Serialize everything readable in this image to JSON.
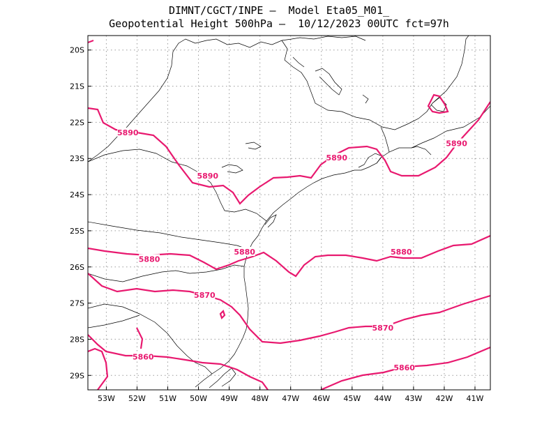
{
  "header": {
    "line1": "DIMNT/CGCT/INPE —  Model Eta05_M01_",
    "line2": "Geopotential Height 500hPa —  10/12/2023 00UTC fct=97h"
  },
  "map": {
    "lon_range": [
      -53.6,
      -40.5
    ],
    "lat_range": [
      -29.4,
      -19.6
    ],
    "lon_ticks": [
      "53W",
      "52W",
      "51W",
      "50W",
      "49W",
      "48W",
      "47W",
      "46W",
      "45W",
      "44W",
      "43W",
      "42W",
      "41W"
    ],
    "lat_ticks": [
      "20S",
      "21S",
      "22S",
      "23S",
      "24S",
      "25S",
      "26S",
      "27S",
      "28S",
      "29S"
    ],
    "contour_color": "#e8196f",
    "coast_color": "#000000",
    "grid_color": "#9a9a9a",
    "contour_labels": [
      {
        "text": "5890",
        "lon": -52.3,
        "lat": -22.3
      },
      {
        "text": "5890",
        "lon": -49.7,
        "lat": -23.5
      },
      {
        "text": "5890",
        "lon": -45.5,
        "lat": -23.0
      },
      {
        "text": "5890",
        "lon": -41.6,
        "lat": -22.6
      },
      {
        "text": "5880",
        "lon": -51.6,
        "lat": -25.8
      },
      {
        "text": "5880",
        "lon": -48.5,
        "lat": -25.6
      },
      {
        "text": "5880",
        "lon": -43.4,
        "lat": -25.6
      },
      {
        "text": "5870",
        "lon": -49.8,
        "lat": -26.8
      },
      {
        "text": "5870",
        "lon": -44.0,
        "lat": -27.7
      },
      {
        "text": "5860",
        "lon": -51.8,
        "lat": -28.5
      },
      {
        "text": "5860",
        "lon": -43.3,
        "lat": -28.8
      }
    ]
  }
}
